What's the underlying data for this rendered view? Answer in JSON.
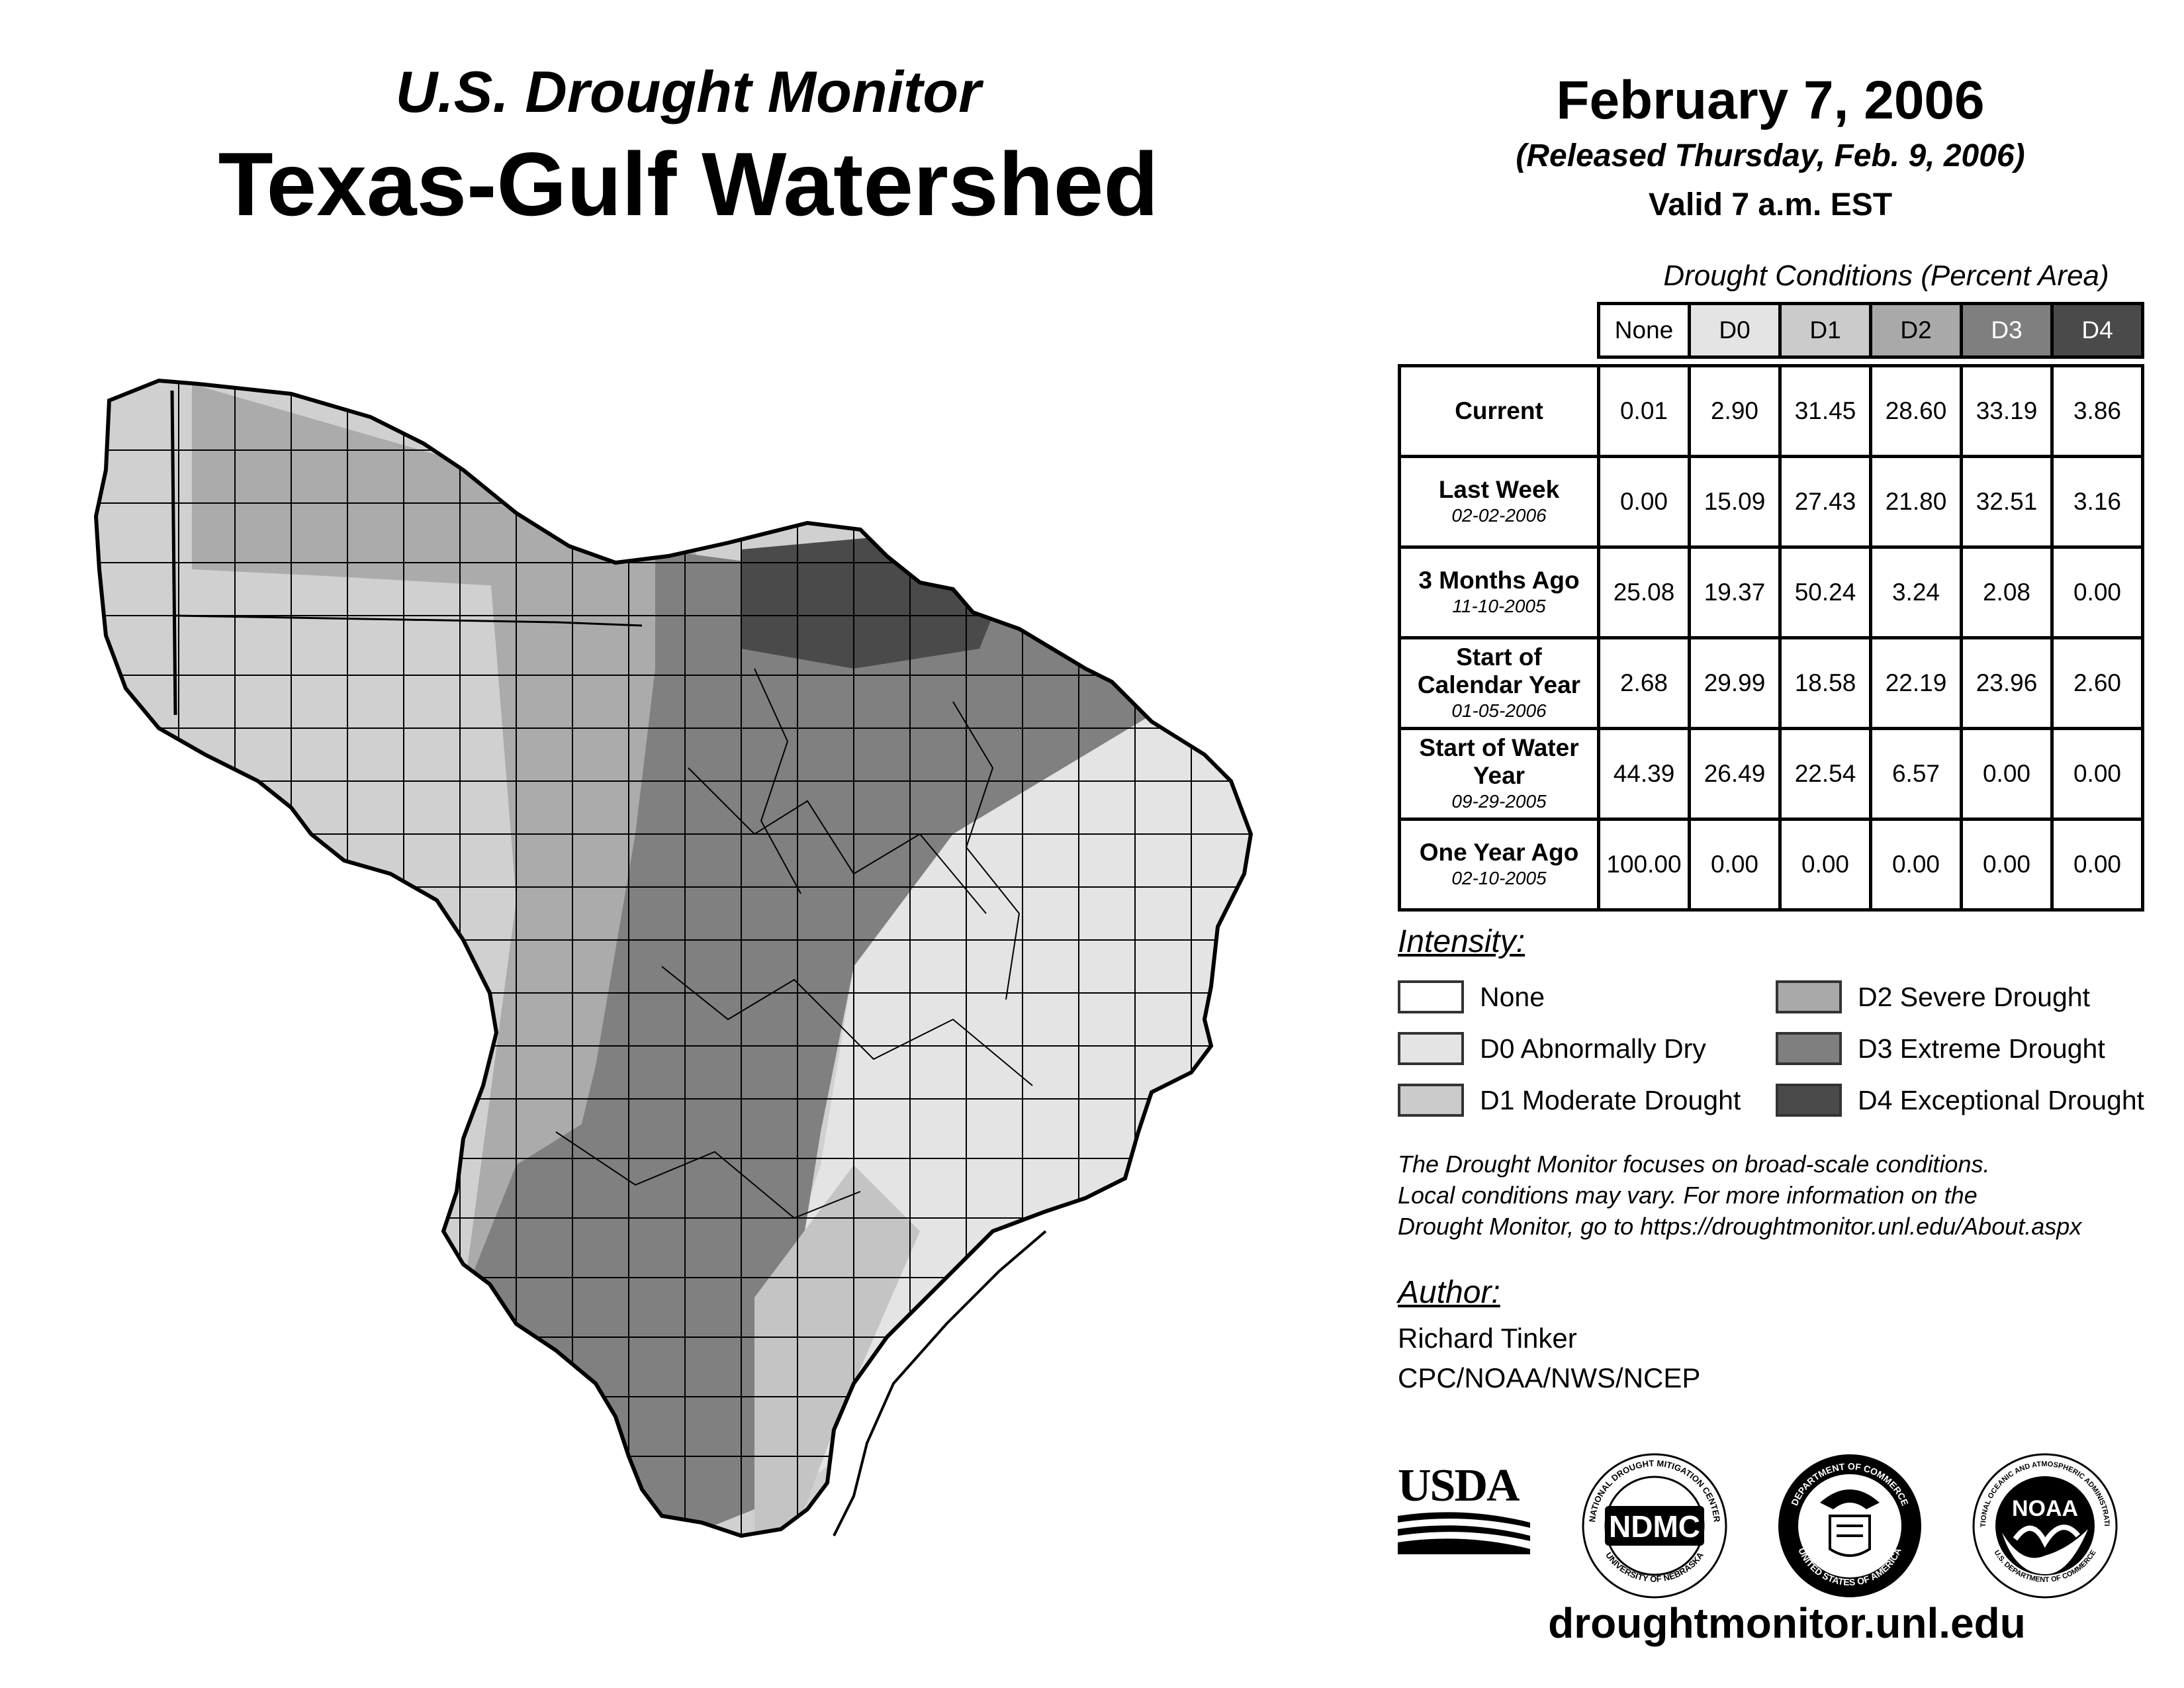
{
  "header": {
    "subtitle": "U.S. Drought Monitor",
    "title": "Texas-Gulf Watershed",
    "date": "February 7, 2006",
    "released": "(Released Thursday, Feb. 9, 2006)",
    "valid": "Valid 7 a.m. EST"
  },
  "table": {
    "caption": "Drought Conditions (Percent Area)",
    "columns": [
      "None",
      "D0",
      "D1",
      "D2",
      "D3",
      "D4"
    ],
    "rows": [
      {
        "label": "Current",
        "date": "",
        "values": [
          "0.01",
          "2.90",
          "31.45",
          "28.60",
          "33.19",
          "3.86"
        ]
      },
      {
        "label": "Last Week",
        "date": "02-02-2006",
        "values": [
          "0.00",
          "15.09",
          "27.43",
          "21.80",
          "32.51",
          "3.16"
        ]
      },
      {
        "label": "3 Months Ago",
        "date": "11-10-2005",
        "values": [
          "25.08",
          "19.37",
          "50.24",
          "3.24",
          "2.08",
          "0.00"
        ]
      },
      {
        "label": "Start of Calendar Year",
        "date": "01-05-2006",
        "values": [
          "2.68",
          "29.99",
          "18.58",
          "22.19",
          "23.96",
          "2.60"
        ]
      },
      {
        "label": "Start of Water Year",
        "date": "09-29-2005",
        "values": [
          "44.39",
          "26.49",
          "22.54",
          "6.57",
          "0.00",
          "0.00"
        ]
      },
      {
        "label": "One Year Ago",
        "date": "02-10-2005",
        "values": [
          "100.00",
          "0.00",
          "0.00",
          "0.00",
          "0.00",
          "0.00"
        ]
      }
    ]
  },
  "legend": {
    "title": "Intensity:",
    "items": [
      {
        "label": "None",
        "color": "#ffffff"
      },
      {
        "label": "D0 Abnormally Dry",
        "color": "#e4e4e4"
      },
      {
        "label": "D1 Moderate Drought",
        "color": "#cbcbcb"
      },
      {
        "label": "D2 Severe Drought",
        "color": "#a9a9a9"
      },
      {
        "label": "D3 Extreme Drought",
        "color": "#7f7f7f"
      },
      {
        "label": "D4 Exceptional Drought",
        "color": "#4a4a4a"
      }
    ]
  },
  "note": {
    "line1": "The Drought Monitor focuses on broad-scale conditions.",
    "line2": "Local conditions may vary. For more information on the",
    "line3": "Drought Monitor, go to https://droughtmonitor.unl.edu/About.aspx"
  },
  "author": {
    "title": "Author:",
    "name": "Richard Tinker",
    "org": "CPC/NOAA/NWS/NCEP"
  },
  "logos": {
    "usda": "USDA",
    "ndmc": "NDMC",
    "ndmc_ring_top": "NATIONAL DROUGHT MITIGATION CENTER",
    "ndmc_ring_bottom": "UNIVERSITY OF NEBRASKA",
    "doc_ring_top": "DEPARTMENT OF COMMERCE",
    "doc_ring_bottom": "UNITED STATES OF AMERICA",
    "noaa": "NOAA",
    "noaa_ring_top": "NATIONAL OCEANIC AND ATMOSPHERIC ADMINISTRATION",
    "noaa_ring_bottom": "U.S. DEPARTMENT OF COMMERCE"
  },
  "website": "droughtmonitor.unl.edu"
}
